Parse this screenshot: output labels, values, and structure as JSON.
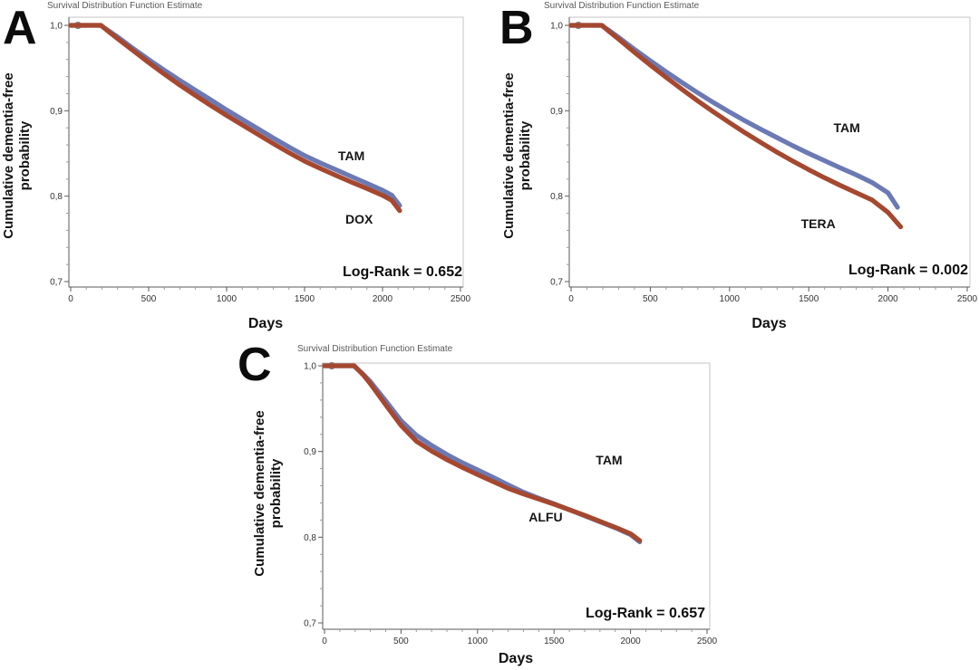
{
  "chart_data": [
    {
      "type": "line",
      "panel_label": "A",
      "title": "Survival Distribution Function Estimate",
      "xlabel": "Days",
      "ylabel": "Cumulative dementia-free probability",
      "ylabel_lines": [
        "Cumulative dementia-free",
        "probability"
      ],
      "annotation": "Log-Rank = 0.652",
      "xlim": [
        0,
        2500
      ],
      "ylim": [
        0.7,
        1.0
      ],
      "xticks": [
        0,
        500,
        1000,
        1500,
        2000,
        2500
      ],
      "yticks": [
        1.0,
        0.9,
        0.8,
        0.7
      ],
      "ytick_labels": [
        "1,0",
        "0,9",
        "0,8",
        "0,7"
      ],
      "x_minor_step": 100,
      "y_minor_step": 0.02,
      "grid": false,
      "legend_position": "inline-labels",
      "censor_marker": "circle-plus",
      "series": [
        {
          "name": "TAM",
          "color": "#6b79b5",
          "label_xy": [
            1800,
            0.847
          ],
          "points": [
            [
              0,
              1.0
            ],
            [
              190,
              1.0
            ],
            [
              240,
              0.994
            ],
            [
              300,
              0.9865
            ],
            [
              400,
              0.973
            ],
            [
              500,
              0.96
            ],
            [
              600,
              0.9475
            ],
            [
              700,
              0.9355
            ],
            [
              800,
              0.924
            ],
            [
              900,
              0.9125
            ],
            [
              1000,
              0.901
            ],
            [
              1100,
              0.89
            ],
            [
              1200,
              0.879
            ],
            [
              1300,
              0.868
            ],
            [
              1400,
              0.8575
            ],
            [
              1500,
              0.8475
            ],
            [
              1600,
              0.839
            ],
            [
              1700,
              0.831
            ],
            [
              1800,
              0.823
            ],
            [
              1900,
              0.815
            ],
            [
              2000,
              0.807
            ],
            [
              2060,
              0.801
            ],
            [
              2110,
              0.789
            ]
          ]
        },
        {
          "name": "DOX",
          "color": "#a5482f",
          "label_xy": [
            1850,
            0.773
          ],
          "points": [
            [
              0,
              1.0
            ],
            [
              195,
              1.0
            ],
            [
              245,
              0.9925
            ],
            [
              300,
              0.9845
            ],
            [
              400,
              0.9705
            ],
            [
              500,
              0.9565
            ],
            [
              600,
              0.943
            ],
            [
              700,
              0.93
            ],
            [
              800,
              0.918
            ],
            [
              900,
              0.906
            ],
            [
              1000,
              0.8945
            ],
            [
              1100,
              0.8835
            ],
            [
              1200,
              0.8725
            ],
            [
              1300,
              0.8615
            ],
            [
              1400,
              0.851
            ],
            [
              1500,
              0.841
            ],
            [
              1600,
              0.8325
            ],
            [
              1700,
              0.8245
            ],
            [
              1800,
              0.8165
            ],
            [
              1900,
              0.809
            ],
            [
              2000,
              0.801
            ],
            [
              2060,
              0.795
            ],
            [
              2110,
              0.783
            ]
          ]
        }
      ]
    },
    {
      "type": "line",
      "panel_label": "B",
      "title": "Survival Distribution Function Estimate",
      "xlabel": "Days",
      "ylabel": "Cumulative dementia-free probability",
      "ylabel_lines": [
        "Cumulative dementia-free",
        "probability"
      ],
      "annotation": "Log-Rank = 0.002",
      "xlim": [
        0,
        2500
      ],
      "ylim": [
        0.7,
        1.0
      ],
      "xticks": [
        0,
        500,
        1000,
        1500,
        2000,
        2500
      ],
      "yticks": [
        1.0,
        0.9,
        0.8,
        0.7
      ],
      "ytick_labels": [
        "1,0",
        "0,9",
        "0,8",
        "0,7"
      ],
      "x_minor_step": 100,
      "y_minor_step": 0.02,
      "grid": false,
      "legend_position": "inline-labels",
      "censor_marker": "circle-plus",
      "series": [
        {
          "name": "TAM",
          "color": "#6b79b5",
          "label_xy": [
            1740,
            0.88
          ],
          "points": [
            [
              0,
              1.0
            ],
            [
              190,
              1.0
            ],
            [
              240,
              0.994
            ],
            [
              300,
              0.986
            ],
            [
              400,
              0.972
            ],
            [
              500,
              0.9585
            ],
            [
              600,
              0.9455
            ],
            [
              700,
              0.933
            ],
            [
              800,
              0.921
            ],
            [
              900,
              0.9095
            ],
            [
              1000,
              0.8985
            ],
            [
              1100,
              0.888
            ],
            [
              1200,
              0.878
            ],
            [
              1300,
              0.8685
            ],
            [
              1400,
              0.859
            ],
            [
              1500,
              0.85
            ],
            [
              1600,
              0.8415
            ],
            [
              1700,
              0.833
            ],
            [
              1800,
              0.825
            ],
            [
              1900,
              0.816
            ],
            [
              2000,
              0.804
            ],
            [
              2060,
              0.787
            ]
          ]
        },
        {
          "name": "TERA",
          "color": "#a5482f",
          "label_xy": [
            1560,
            0.768
          ],
          "points": [
            [
              0,
              1.0
            ],
            [
              195,
              1.0
            ],
            [
              245,
              0.992
            ],
            [
              300,
              0.984
            ],
            [
              400,
              0.9685
            ],
            [
              500,
              0.9535
            ],
            [
              600,
              0.939
            ],
            [
              700,
              0.925
            ],
            [
              800,
              0.9115
            ],
            [
              900,
              0.8985
            ],
            [
              1000,
              0.886
            ],
            [
              1100,
              0.874
            ],
            [
              1200,
              0.8625
            ],
            [
              1300,
              0.8515
            ],
            [
              1400,
              0.841
            ],
            [
              1500,
              0.831
            ],
            [
              1600,
              0.8215
            ],
            [
              1700,
              0.8125
            ],
            [
              1800,
              0.804
            ],
            [
              1900,
              0.7955
            ],
            [
              2000,
              0.781
            ],
            [
              2080,
              0.764
            ]
          ]
        }
      ]
    },
    {
      "type": "line",
      "panel_label": "C",
      "title": "Survival Distribution Function Estimate",
      "xlabel": "Days",
      "ylabel": "Cumulative dementia-free probability",
      "ylabel_lines": [
        "Cumulative dementia-free",
        "probability"
      ],
      "annotation": "Log-Rank = 0.657",
      "xlim": [
        0,
        2500
      ],
      "ylim": [
        0.7,
        1.0
      ],
      "xticks": [
        0,
        500,
        1000,
        1500,
        2000,
        2500
      ],
      "yticks": [
        1.0,
        0.9,
        0.8,
        0.7
      ],
      "ytick_labels": [
        "1,0",
        "0,9",
        "0,8",
        "0,7"
      ],
      "x_minor_step": 100,
      "y_minor_step": 0.02,
      "grid": false,
      "legend_position": "inline-labels",
      "censor_marker": "circle-plus",
      "series": [
        {
          "name": "TAM",
          "color": "#6b79b5",
          "label_xy": [
            1860,
            0.89
          ],
          "points": [
            [
              0,
              1.0
            ],
            [
              190,
              1.0
            ],
            [
              250,
              0.9905
            ],
            [
              300,
              0.9815
            ],
            [
              400,
              0.959
            ],
            [
              500,
              0.936
            ],
            [
              600,
              0.919
            ],
            [
              700,
              0.907
            ],
            [
              800,
              0.8965
            ],
            [
              900,
              0.887
            ],
            [
              1000,
              0.8785
            ],
            [
              1100,
              0.87
            ],
            [
              1200,
              0.861
            ],
            [
              1300,
              0.8525
            ],
            [
              1400,
              0.8455
            ],
            [
              1500,
              0.839
            ],
            [
              1600,
              0.832
            ],
            [
              1700,
              0.825
            ],
            [
              1800,
              0.818
            ],
            [
              1900,
              0.811
            ],
            [
              2000,
              0.803
            ],
            [
              2060,
              0.7945
            ]
          ]
        },
        {
          "name": "ALFU",
          "color": "#a5482f",
          "label_xy": [
            1445,
            0.824
          ],
          "points": [
            [
              0,
              1.0
            ],
            [
              195,
              1.0
            ],
            [
              255,
              0.989
            ],
            [
              300,
              0.979
            ],
            [
              400,
              0.9545
            ],
            [
              500,
              0.9305
            ],
            [
              600,
              0.912
            ],
            [
              700,
              0.9005
            ],
            [
              800,
              0.8905
            ],
            [
              900,
              0.8815
            ],
            [
              1000,
              0.873
            ],
            [
              1100,
              0.865
            ],
            [
              1200,
              0.857
            ],
            [
              1300,
              0.8505
            ],
            [
              1400,
              0.8445
            ],
            [
              1500,
              0.8385
            ],
            [
              1600,
              0.832
            ],
            [
              1700,
              0.8255
            ],
            [
              1800,
              0.8185
            ],
            [
              1900,
              0.8115
            ],
            [
              2000,
              0.804
            ],
            [
              2060,
              0.796
            ]
          ]
        }
      ]
    }
  ]
}
